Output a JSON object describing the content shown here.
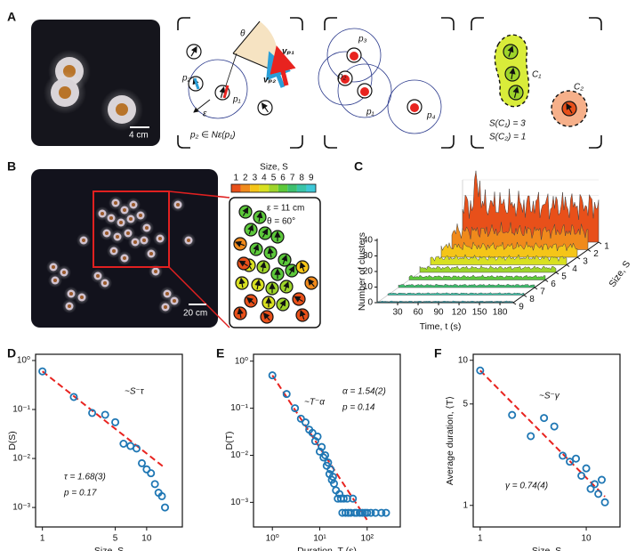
{
  "panel_labels": [
    "A",
    "B",
    "C",
    "D",
    "E",
    "F"
  ],
  "panel_a": {
    "scale_bar": "4 cm",
    "diagram_1": {
      "theta": "θ",
      "v_p1": "vₚ₁",
      "v_p2": "vₚ₂",
      "p2": "p₂",
      "p1": "p₁",
      "epsilon": "ε",
      "neighborhood": "p₂ ∈ Nε(p₁)"
    },
    "diagram_2": {
      "p3": "p₃",
      "p2": "p₂",
      "p1": "p₁",
      "p4": "p₄"
    },
    "diagram_3": {
      "c1": "C₁",
      "c2": "C₂",
      "size_c1": "S(C₁) = 3",
      "size_c2": "S(C₂) = 1"
    }
  },
  "panel_b": {
    "scale_bar": "20 cm",
    "epsilon": "ε = 11 cm",
    "theta": "θ = 60°",
    "colorbar": {
      "title": "Size, S",
      "ticks": [
        1,
        2,
        3,
        4,
        5,
        6,
        7,
        8,
        9
      ],
      "colors": [
        "#e8501a",
        "#f08a1c",
        "#f5c518",
        "#d8e021",
        "#9ed42a",
        "#5cc83a",
        "#3dbf6e",
        "#39c4a8",
        "#3ec8d8"
      ]
    }
  },
  "panel_c": {
    "y_label": "Number of clusters",
    "yticks": [
      0,
      10,
      20,
      30,
      40
    ],
    "x_label": "Time, t (s)",
    "xticks": [
      30,
      60,
      90,
      120,
      150,
      180
    ],
    "size_label": "Size, S",
    "size_ticks": [
      9,
      8,
      7,
      6,
      5,
      4,
      3,
      2,
      1
    ]
  },
  "chart_data": [
    {
      "type": "scatter",
      "log_x": true,
      "log_y": true,
      "x_label": "Size, S",
      "y_label": "D(S)",
      "xlim": [
        0.86,
        22
      ],
      "ylim": [
        0.0004,
        1.34
      ],
      "xticks": [
        1,
        5,
        10
      ],
      "yticks": [
        {
          "value": 1,
          "label": "10⁰"
        },
        {
          "value": 0.1,
          "label": "10⁻¹"
        },
        {
          "value": 0.01,
          "label": "10⁻²"
        },
        {
          "value": 0.001,
          "label": "10⁻³"
        }
      ],
      "x": [
        1,
        2,
        3,
        4,
        5,
        6,
        7,
        8,
        9,
        10,
        11,
        12,
        13,
        14,
        15
      ],
      "values": [
        0.6,
        0.18,
        0.085,
        0.078,
        0.055,
        0.02,
        0.018,
        0.016,
        0.008,
        0.006,
        0.005,
        0.003,
        0.002,
        0.0017,
        0.001
      ],
      "color": "#1f77b4",
      "fit": {
        "x": [
          1,
          15
        ],
        "values": [
          0.6,
          0.0064
        ],
        "color": "#e8231f"
      },
      "annotations": [
        "~S⁻τ",
        "τ = 1.68(3)",
        "p = 0.17"
      ]
    },
    {
      "type": "scatter",
      "log_x": true,
      "log_y": true,
      "x_label": "Duration, T (s)",
      "y_label": "D(T)",
      "xlim": [
        0.4,
        500
      ],
      "ylim": [
        0.0003,
        1.4
      ],
      "xticks": [
        {
          "value": 1,
          "label": "10⁰"
        },
        {
          "value": 10,
          "label": "10¹"
        },
        {
          "value": 100,
          "label": "10²"
        }
      ],
      "yticks": [
        {
          "value": 1,
          "label": "10⁰"
        },
        {
          "value": 0.1,
          "label": "10⁻¹"
        },
        {
          "value": 0.01,
          "label": "10⁻²"
        },
        {
          "value": 0.001,
          "label": "10⁻³"
        }
      ],
      "x": [
        1,
        2,
        3,
        4,
        5,
        6,
        7,
        8,
        9,
        10,
        11,
        12,
        13,
        14,
        15,
        16,
        17,
        18,
        19,
        20,
        22,
        24,
        26,
        28,
        30,
        32,
        35,
        38,
        40,
        45,
        50,
        55,
        60,
        70,
        80,
        90,
        100,
        120,
        150,
        200,
        250
      ],
      "values": [
        0.5,
        0.2,
        0.1,
        0.06,
        0.05,
        0.035,
        0.03,
        0.02,
        0.025,
        0.012,
        0.015,
        0.009,
        0.01,
        0.006,
        0.007,
        0.004,
        0.005,
        0.003,
        0.0035,
        0.0025,
        0.0018,
        0.0012,
        0.0015,
        0.0012,
        0.0006,
        0.0012,
        0.0006,
        0.0012,
        0.0006,
        0.0006,
        0.0012,
        0.0006,
        0.0006,
        0.0006,
        0.0006,
        0.0006,
        0.0006,
        0.0006,
        0.0006,
        0.0006,
        0.0006
      ],
      "color": "#1f77b4",
      "fit": {
        "x": [
          1,
          100
        ],
        "values": [
          0.5,
          0.00042
        ],
        "color": "#e8231f"
      },
      "annotations": [
        "~T⁻α",
        "α = 1.54(2)",
        "p = 0.14"
      ]
    },
    {
      "type": "scatter",
      "log_x": true,
      "log_y": true,
      "x_label": "Size, S",
      "y_label": "Average duration, ⟨T⟩",
      "xlim": [
        0.86,
        20.8
      ],
      "ylim": [
        0.71,
        11
      ],
      "xticks": [
        1,
        10
      ],
      "yticks": [
        1,
        5,
        10
      ],
      "x": [
        1,
        2,
        3,
        4,
        5,
        6,
        7,
        8,
        9,
        10,
        11,
        12,
        13,
        14,
        15
      ],
      "values": [
        8.5,
        4.2,
        3.0,
        4.0,
        3.5,
        2.2,
        2.0,
        2.1,
        1.6,
        1.8,
        1.3,
        1.4,
        1.2,
        1.5,
        1.05
      ],
      "color": "#1f77b4",
      "fit": {
        "x": [
          1,
          15
        ],
        "values": [
          8.5,
          1.15
        ],
        "color": "#e8231f"
      },
      "annotations": [
        "~S⁻γ",
        "γ = 0.74(4)"
      ]
    }
  ]
}
